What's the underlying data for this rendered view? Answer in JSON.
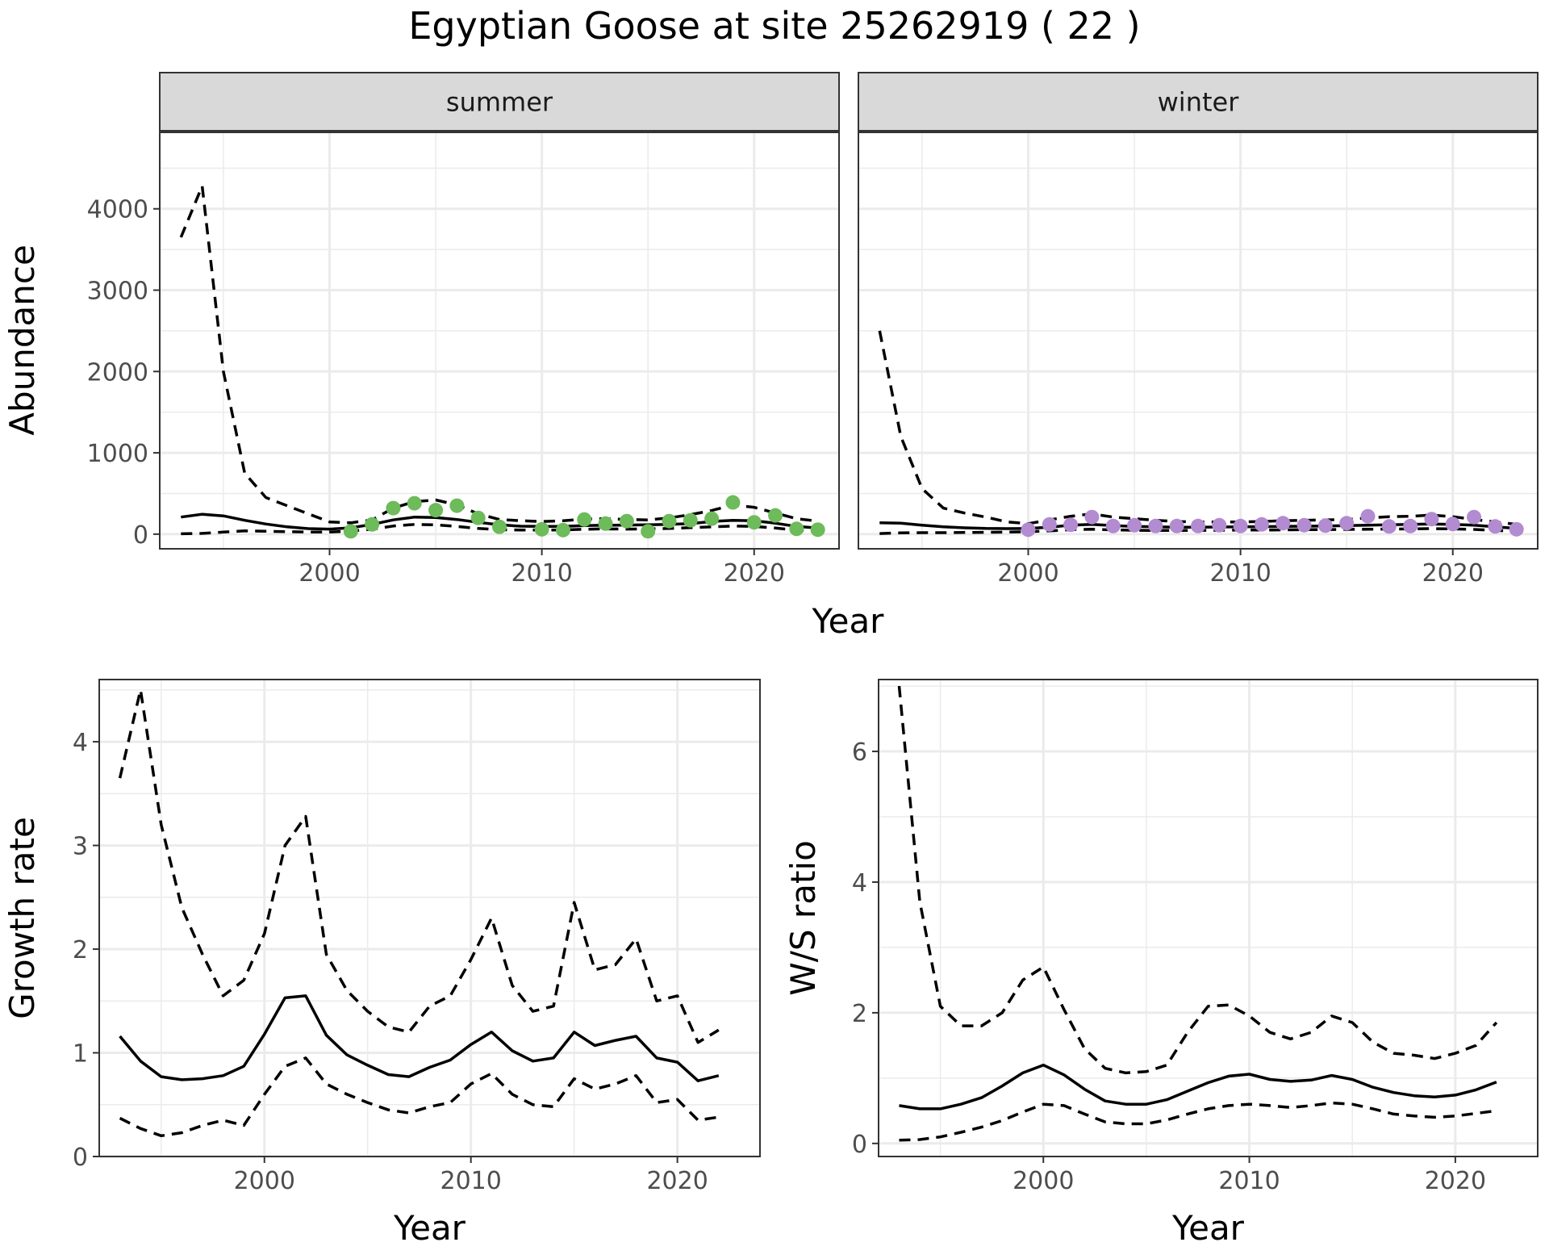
{
  "figure": {
    "title": "Egyptian Goose at site 25262919 ( 22 )",
    "shared_xlabel": "Year"
  },
  "chart_data": [
    {
      "type": "line",
      "panel": "summer",
      "strip_label": "summer",
      "ylabel": "Abundance",
      "xlim": [
        1992,
        2024
      ],
      "ylim": [
        -180,
        4950
      ],
      "x_ticks": [
        2000,
        2010,
        2020
      ],
      "y_ticks": [
        0,
        1000,
        2000,
        3000,
        4000
      ],
      "grid": true,
      "point_color": "#6dbb5a",
      "series": [
        {
          "role": "estimate",
          "style": "solid",
          "x": [
            1993,
            1994,
            1995,
            1996,
            1997,
            1998,
            1999,
            2000,
            2001,
            2002,
            2003,
            2004,
            2005,
            2006,
            2007,
            2008,
            2009,
            2010,
            2011,
            2012,
            2013,
            2014,
            2015,
            2016,
            2017,
            2018,
            2019,
            2020,
            2021,
            2022,
            2023
          ],
          "values": [
            210,
            245,
            225,
            170,
            125,
            90,
            68,
            62,
            78,
            120,
            175,
            210,
            205,
            180,
            145,
            115,
            98,
            95,
            95,
            105,
            110,
            112,
            115,
            120,
            130,
            155,
            170,
            165,
            135,
            95,
            75
          ]
        },
        {
          "role": "upper",
          "style": "dashed",
          "x": [
            1993,
            1994,
            1995,
            1996,
            1997,
            1998,
            1999,
            2000,
            2001,
            2002,
            2003,
            2004,
            2005,
            2006,
            2007,
            2008,
            2009,
            2010,
            2011,
            2012,
            2013,
            2014,
            2015,
            2016,
            2017,
            2018,
            2019,
            2020,
            2021,
            2022,
            2023
          ],
          "values": [
            3650,
            4280,
            2000,
            750,
            450,
            350,
            250,
            150,
            140,
            175,
            320,
            400,
            420,
            360,
            250,
            180,
            165,
            155,
            165,
            185,
            190,
            180,
            175,
            200,
            240,
            290,
            360,
            330,
            260,
            190,
            160
          ]
        },
        {
          "role": "lower",
          "style": "dashed",
          "x": [
            1993,
            1994,
            1995,
            1996,
            1997,
            1998,
            1999,
            2000,
            2001,
            2002,
            2003,
            2004,
            2005,
            2006,
            2007,
            2008,
            2009,
            2010,
            2011,
            2012,
            2013,
            2014,
            2015,
            2016,
            2017,
            2018,
            2019,
            2020,
            2021,
            2022,
            2023
          ],
          "values": [
            5,
            10,
            25,
            40,
            35,
            30,
            25,
            25,
            38,
            60,
            100,
            120,
            115,
            95,
            70,
            55,
            50,
            50,
            52,
            60,
            65,
            62,
            65,
            70,
            80,
            90,
            100,
            95,
            75,
            50,
            35
          ]
        }
      ],
      "points": {
        "x": [
          2001,
          2002,
          2003,
          2004,
          2005,
          2006,
          2007,
          2008,
          2010,
          2011,
          2012,
          2013,
          2014,
          2015,
          2016,
          2017,
          2018,
          2019,
          2020,
          2021,
          2022,
          2023
        ],
        "values": [
          35,
          120,
          320,
          380,
          295,
          350,
          200,
          90,
          60,
          50,
          180,
          130,
          160,
          35,
          160,
          170,
          190,
          390,
          145,
          230,
          65,
          55
        ]
      }
    },
    {
      "type": "line",
      "panel": "winter",
      "strip_label": "winter",
      "xlim": [
        1992,
        2024
      ],
      "ylim": [
        -180,
        4950
      ],
      "x_ticks": [
        2000,
        2010,
        2020
      ],
      "grid": true,
      "point_color": "#b28bd1",
      "series": [
        {
          "role": "estimate",
          "style": "solid",
          "x": [
            1993,
            1994,
            1995,
            1996,
            1997,
            1998,
            1999,
            2000,
            2001,
            2002,
            2003,
            2004,
            2005,
            2006,
            2007,
            2008,
            2009,
            2010,
            2011,
            2012,
            2013,
            2014,
            2015,
            2016,
            2017,
            2018,
            2019,
            2020,
            2021,
            2022,
            2023
          ],
          "values": [
            140,
            135,
            110,
            90,
            78,
            70,
            68,
            70,
            85,
            110,
            120,
            105,
            95,
            90,
            85,
            85,
            88,
            90,
            92,
            95,
            98,
            100,
            105,
            110,
            115,
            120,
            125,
            120,
            110,
            90,
            70
          ]
        },
        {
          "role": "upper",
          "style": "dashed",
          "x": [
            1993,
            1994,
            1995,
            1996,
            1997,
            1998,
            1999,
            2000,
            2001,
            2002,
            2003,
            2004,
            2005,
            2006,
            2007,
            2008,
            2009,
            2010,
            2011,
            2012,
            2013,
            2014,
            2015,
            2016,
            2017,
            2018,
            2019,
            2020,
            2021,
            2022,
            2023
          ],
          "values": [
            2500,
            1200,
            560,
            320,
            260,
            210,
            150,
            130,
            175,
            220,
            250,
            210,
            190,
            170,
            155,
            150,
            150,
            150,
            155,
            165,
            170,
            175,
            180,
            200,
            215,
            220,
            235,
            215,
            180,
            150,
            120
          ]
        },
        {
          "role": "lower",
          "style": "dashed",
          "x": [
            1993,
            1994,
            1995,
            1996,
            1997,
            1998,
            1999,
            2000,
            2001,
            2002,
            2003,
            2004,
            2005,
            2006,
            2007,
            2008,
            2009,
            2010,
            2011,
            2012,
            2013,
            2014,
            2015,
            2016,
            2017,
            2018,
            2019,
            2020,
            2021,
            2022,
            2023
          ],
          "values": [
            8,
            15,
            18,
            18,
            20,
            22,
            25,
            30,
            40,
            55,
            60,
            52,
            48,
            45,
            45,
            45,
            48,
            50,
            50,
            52,
            55,
            56,
            58,
            60,
            62,
            65,
            68,
            65,
            58,
            45,
            35
          ]
        }
      ],
      "points": {
        "x": [
          2000,
          2001,
          2002,
          2003,
          2004,
          2005,
          2006,
          2007,
          2008,
          2009,
          2010,
          2011,
          2012,
          2013,
          2014,
          2015,
          2016,
          2017,
          2018,
          2019,
          2020,
          2021,
          2022,
          2023
        ],
        "values": [
          55,
          120,
          115,
          210,
          100,
          110,
          100,
          100,
          100,
          110,
          100,
          120,
          135,
          110,
          105,
          135,
          220,
          95,
          100,
          185,
          125,
          210,
          95,
          60
        ]
      }
    },
    {
      "type": "line",
      "panel": "growth",
      "ylabel": "Growth rate",
      "xlabel": "Year",
      "xlim": [
        1992,
        2024
      ],
      "ylim": [
        0,
        4.6
      ],
      "x_ticks": [
        2000,
        2010,
        2020
      ],
      "y_ticks": [
        0,
        1,
        2,
        3,
        4
      ],
      "grid": true,
      "series": [
        {
          "role": "estimate",
          "style": "solid",
          "x": [
            1993,
            1994,
            1995,
            1996,
            1997,
            1998,
            1999,
            2000,
            2001,
            2002,
            2003,
            2004,
            2005,
            2006,
            2007,
            2008,
            2009,
            2010,
            2011,
            2012,
            2013,
            2014,
            2015,
            2016,
            2017,
            2018,
            2019,
            2020,
            2021,
            2022
          ],
          "values": [
            1.16,
            0.92,
            0.77,
            0.74,
            0.75,
            0.78,
            0.87,
            1.18,
            1.53,
            1.55,
            1.17,
            0.98,
            0.88,
            0.79,
            0.77,
            0.86,
            0.93,
            1.08,
            1.2,
            1.02,
            0.92,
            0.95,
            1.2,
            1.07,
            1.12,
            1.16,
            0.95,
            0.91,
            0.73,
            0.78
          ]
        },
        {
          "role": "upper",
          "style": "dashed",
          "x": [
            1993,
            1994,
            1995,
            1996,
            1997,
            1998,
            1999,
            2000,
            2001,
            2002,
            2003,
            2004,
            2005,
            2006,
            2007,
            2008,
            2009,
            2010,
            2011,
            2012,
            2013,
            2014,
            2015,
            2016,
            2017,
            2018,
            2019,
            2020,
            2021,
            2022
          ],
          "values": [
            3.65,
            4.5,
            3.2,
            2.4,
            1.95,
            1.55,
            1.7,
            2.15,
            3.0,
            3.28,
            1.95,
            1.6,
            1.4,
            1.25,
            1.2,
            1.45,
            1.55,
            1.9,
            2.3,
            1.65,
            1.4,
            1.45,
            2.45,
            1.8,
            1.85,
            2.1,
            1.5,
            1.55,
            1.1,
            1.22
          ]
        },
        {
          "role": "lower",
          "style": "dashed",
          "x": [
            1993,
            1994,
            1995,
            1996,
            1997,
            1998,
            1999,
            2000,
            2001,
            2002,
            2003,
            2004,
            2005,
            2006,
            2007,
            2008,
            2009,
            2010,
            2011,
            2012,
            2013,
            2014,
            2015,
            2016,
            2017,
            2018,
            2019,
            2020,
            2021,
            2022
          ],
          "values": [
            0.37,
            0.27,
            0.2,
            0.23,
            0.3,
            0.35,
            0.3,
            0.6,
            0.87,
            0.95,
            0.7,
            0.6,
            0.52,
            0.45,
            0.42,
            0.48,
            0.52,
            0.7,
            0.8,
            0.6,
            0.5,
            0.48,
            0.75,
            0.65,
            0.7,
            0.78,
            0.52,
            0.55,
            0.35,
            0.38
          ]
        }
      ]
    },
    {
      "type": "line",
      "panel": "ratio",
      "ylabel": "W/S ratio",
      "xlabel": "Year",
      "xlim": [
        1992,
        2024
      ],
      "ylim": [
        -0.2,
        7.1
      ],
      "x_ticks": [
        2000,
        2010,
        2020
      ],
      "y_ticks": [
        0,
        2,
        4,
        6
      ],
      "grid": true,
      "series": [
        {
          "role": "estimate",
          "style": "solid",
          "x": [
            1993,
            1994,
            1995,
            1996,
            1997,
            1998,
            1999,
            2000,
            2001,
            2002,
            2003,
            2004,
            2005,
            2006,
            2007,
            2008,
            2009,
            2010,
            2011,
            2012,
            2013,
            2014,
            2015,
            2016,
            2017,
            2018,
            2019,
            2020,
            2021,
            2022
          ],
          "values": [
            0.58,
            0.53,
            0.53,
            0.6,
            0.7,
            0.88,
            1.08,
            1.2,
            1.05,
            0.83,
            0.65,
            0.6,
            0.6,
            0.67,
            0.8,
            0.93,
            1.03,
            1.06,
            0.98,
            0.95,
            0.97,
            1.04,
            0.98,
            0.86,
            0.78,
            0.73,
            0.71,
            0.74,
            0.82,
            0.94
          ]
        },
        {
          "role": "upper",
          "style": "dashed",
          "x": [
            1993,
            1994,
            1995,
            1996,
            1997,
            1998,
            1999,
            2000,
            2001,
            2002,
            2003,
            2004,
            2005,
            2006,
            2007,
            2008,
            2009,
            2010,
            2011,
            2012,
            2013,
            2014,
            2015,
            2016,
            2017,
            2018,
            2019,
            2020,
            2021,
            2022
          ],
          "values": [
            7.0,
            3.7,
            2.1,
            1.8,
            1.8,
            2.0,
            2.5,
            2.7,
            2.05,
            1.45,
            1.15,
            1.08,
            1.1,
            1.2,
            1.7,
            2.1,
            2.12,
            1.95,
            1.7,
            1.6,
            1.7,
            1.95,
            1.85,
            1.55,
            1.38,
            1.35,
            1.3,
            1.38,
            1.5,
            1.85
          ]
        },
        {
          "role": "lower",
          "style": "dashed",
          "x": [
            1993,
            1994,
            1995,
            1996,
            1997,
            1998,
            1999,
            2000,
            2001,
            2002,
            2003,
            2004,
            2005,
            2006,
            2007,
            2008,
            2009,
            2010,
            2011,
            2012,
            2013,
            2014,
            2015,
            2016,
            2017,
            2018,
            2019,
            2020,
            2021,
            2022
          ],
          "values": [
            0.05,
            0.06,
            0.1,
            0.17,
            0.25,
            0.35,
            0.48,
            0.6,
            0.58,
            0.45,
            0.33,
            0.3,
            0.3,
            0.36,
            0.45,
            0.53,
            0.58,
            0.6,
            0.58,
            0.55,
            0.58,
            0.62,
            0.6,
            0.53,
            0.45,
            0.42,
            0.4,
            0.42,
            0.46,
            0.5
          ]
        }
      ]
    }
  ]
}
